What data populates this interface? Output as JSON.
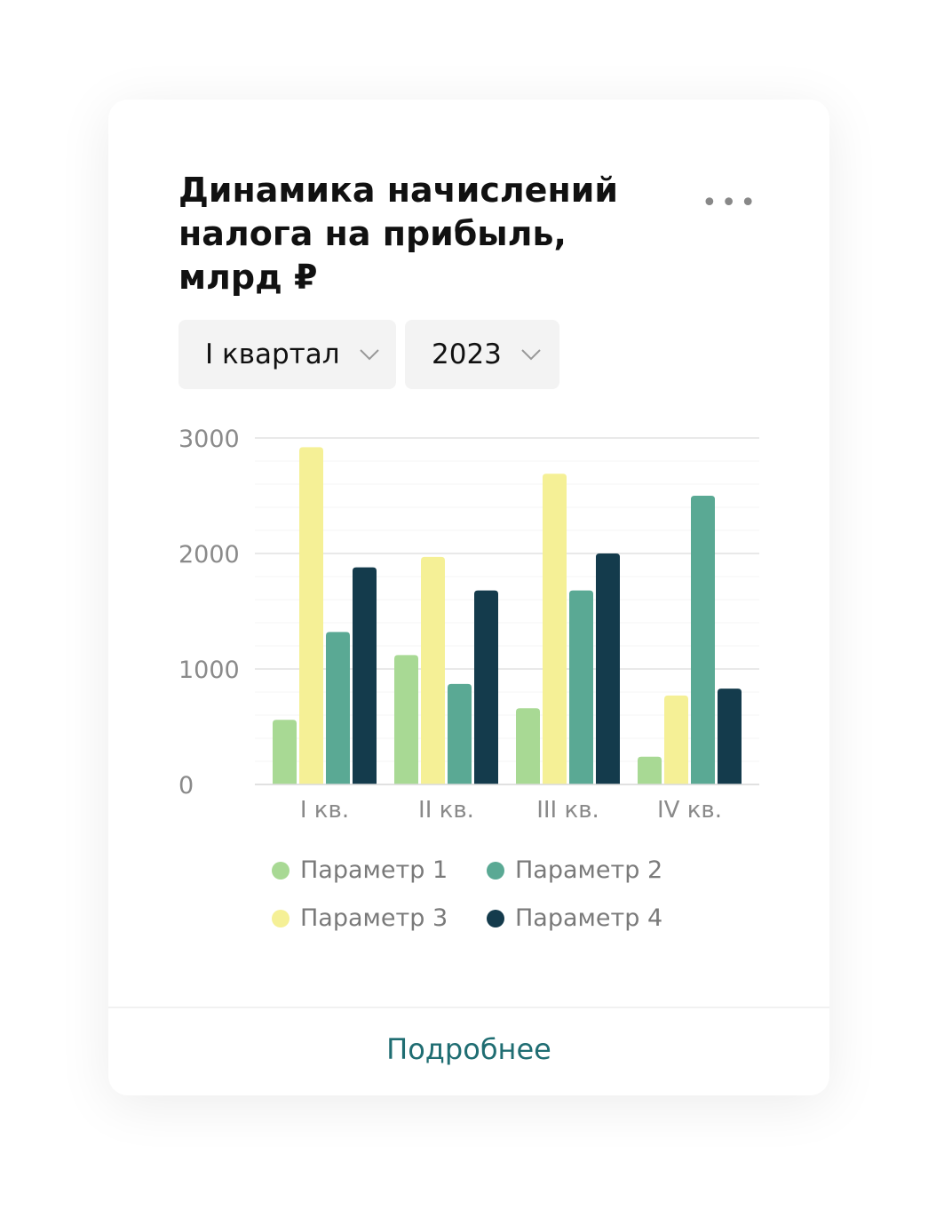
{
  "card": {
    "title": "Динамика начислений налога на прибыль, млрд ₽",
    "more_icon": "ellipsis-horizontal-icon",
    "filters": {
      "period": "I квартал",
      "year": "2023"
    },
    "footer_link": "Подробнее"
  },
  "colors": {
    "param1": "#a8d994",
    "param2": "#5aa994",
    "param3": "#f5f096",
    "param4": "#143b4c",
    "link": "#1f6d72"
  },
  "chart_data": {
    "type": "bar",
    "title": "Динамика начислений налога на прибыль, млрд ₽",
    "categories": [
      "I кв.",
      "II кв.",
      "III кв.",
      "IV кв."
    ],
    "ylim": [
      0,
      3000
    ],
    "yticks": [
      "0",
      "1000",
      "2000",
      "3000"
    ],
    "grid": true,
    "legend_position": "bottom",
    "series": [
      {
        "name": "Параметр 1",
        "values": [
          560,
          1120,
          660,
          240
        ]
      },
      {
        "name": "Параметр 3",
        "values": [
          2920,
          1970,
          2690,
          770
        ]
      },
      {
        "name": "Параметр 2",
        "values": [
          1320,
          870,
          1680,
          2500
        ]
      },
      {
        "name": "Параметр 4",
        "values": [
          1880,
          1680,
          2000,
          830
        ]
      }
    ],
    "legend": [
      "Параметр 1",
      "Параметр 2",
      "Параметр 3",
      "Параметр 4"
    ]
  }
}
